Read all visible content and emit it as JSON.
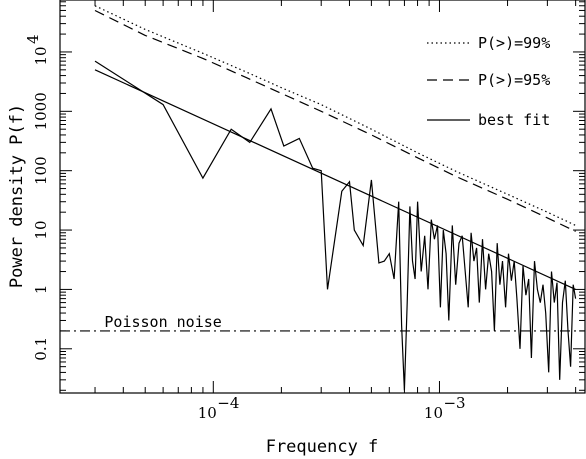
{
  "chart_data": {
    "type": "line",
    "xlabel": "Frequency f",
    "ylabel": "Power density P(f)",
    "xscale": "log",
    "yscale": "log",
    "xlim": [
      2.1e-05,
      0.0044
    ],
    "ylim": [
      0.018,
      75000
    ],
    "grid": false,
    "legend_position": "top-right",
    "x_ticks": [
      {
        "value": 0.0001,
        "base": "10",
        "exp": "−4"
      },
      {
        "value": 0.001,
        "base": "10",
        "exp": "−3"
      }
    ],
    "y_ticks": [
      {
        "value": 0.1,
        "label": "0.1"
      },
      {
        "value": 1,
        "label": "1"
      },
      {
        "value": 10,
        "label": "10"
      },
      {
        "value": 100,
        "label": "100"
      },
      {
        "value": 1000,
        "label": "1000"
      },
      {
        "value": 10000,
        "label": "10",
        "exp": "4"
      }
    ],
    "annotation": {
      "text": "Poisson noise",
      "x": 3.3e-05,
      "y": 0.27
    },
    "series": [
      {
        "name": "P(>)=99%",
        "style": "dotted",
        "x": [
          3e-05,
          5e-05,
          9e-05,
          0.00014,
          0.0002,
          0.0003,
          0.0005,
          0.0008,
          0.0012,
          0.002,
          0.003,
          0.004
        ],
        "y": [
          60000,
          24000,
          9500,
          4600,
          2500,
          1300,
          500,
          200,
          95,
          40,
          20,
          12
        ]
      },
      {
        "name": "P(>)=95%",
        "style": "dashed",
        "x": [
          3e-05,
          5e-05,
          9e-05,
          0.00014,
          0.0002,
          0.0003,
          0.0005,
          0.0008,
          0.0012,
          0.002,
          0.003,
          0.004
        ],
        "y": [
          50000,
          19000,
          7800,
          3700,
          2000,
          1000,
          400,
          165,
          78,
          33,
          16,
          9.5
        ]
      },
      {
        "name": "best fit",
        "style": "solid",
        "x": [
          3e-05,
          0.004
        ],
        "y": [
          5000,
          1.0
        ]
      },
      {
        "name": "",
        "style": "solid",
        "x": [
          3e-05,
          6e-05,
          9e-05,
          0.00012,
          0.000145,
          0.00018,
          0.000205,
          0.00024,
          0.000275,
          0.0003,
          0.00032,
          0.00037,
          0.0004,
          0.00042,
          0.00046,
          0.0005,
          0.00054,
          0.00057,
          0.0006,
          0.00063,
          0.00066,
          0.00068,
          0.0007,
          0.00072,
          0.00074,
          0.00076,
          0.00078,
          0.0008,
          0.00083,
          0.00086,
          0.00089,
          0.00092,
          0.00095,
          0.00098,
          0.00101,
          0.00104,
          0.00107,
          0.0011,
          0.00114,
          0.00118,
          0.00122,
          0.00126,
          0.0013,
          0.00134,
          0.00138,
          0.00142,
          0.00146,
          0.0015,
          0.00155,
          0.0016,
          0.00165,
          0.0017,
          0.00175,
          0.0018,
          0.00185,
          0.0019,
          0.00196,
          0.00202,
          0.00208,
          0.00214,
          0.0022,
          0.00227,
          0.00234,
          0.00241,
          0.00248,
          0.00255,
          0.00263,
          0.00271,
          0.00279,
          0.00287,
          0.00295,
          0.00304,
          0.00313,
          0.00322,
          0.00331,
          0.0034,
          0.0035,
          0.0036,
          0.0037,
          0.0038,
          0.0039,
          0.004
        ],
        "y": [
          7000,
          1300,
          75,
          500,
          300,
          1100,
          260,
          350,
          110,
          100,
          1,
          45,
          65,
          10,
          5.5,
          70,
          2.8,
          3,
          4,
          1.5,
          30,
          0.25,
          0.02,
          0.6,
          25,
          3,
          1.5,
          30,
          2,
          8,
          1,
          15,
          7,
          12,
          0.5,
          10,
          4,
          0.3,
          12,
          1.2,
          6,
          8,
          2,
          0.5,
          9,
          3,
          5,
          0.6,
          7,
          1,
          4,
          2,
          0.2,
          6,
          1.2,
          3,
          0.5,
          4,
          1.4,
          3,
          0.7,
          0.1,
          2.5,
          0.8,
          1.5,
          0.07,
          3,
          1,
          0.6,
          1.2,
          0.4,
          0.04,
          2,
          0.6,
          1.3,
          0.03,
          0.6,
          1.4,
          0.2,
          0.05,
          1.2,
          0.7
        ]
      }
    ]
  }
}
